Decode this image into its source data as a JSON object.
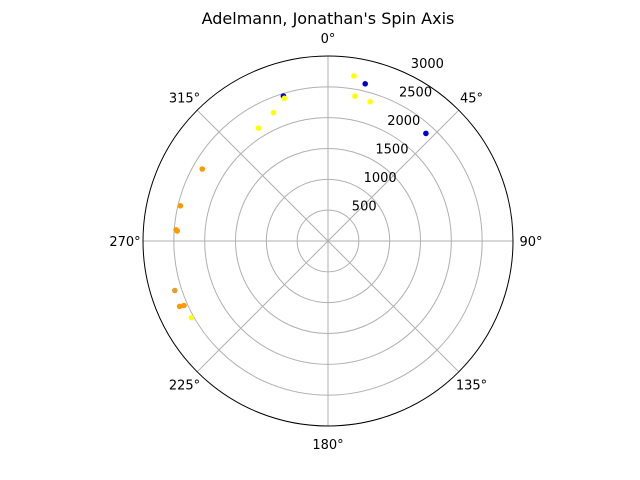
{
  "chart_data": {
    "type": "scatter",
    "projection": "polar",
    "title": "Adelmann, Jonathan's Spin Axis",
    "theta_zero": "top",
    "theta_direction": "clockwise",
    "rlim": [
      0,
      3000
    ],
    "r_ticks": [
      500,
      1000,
      1500,
      2000,
      2500,
      3000
    ],
    "theta_ticks": [
      "0°",
      "45°",
      "90°",
      "135°",
      "180°",
      "225°",
      "270°",
      "315°"
    ],
    "grid": true,
    "legend": "none",
    "colors": {
      "blue": "#0000cc",
      "yellow": "#ffff00",
      "orange": "#ff9900",
      "goldenrod": "#e0a030"
    },
    "points": [
      {
        "theta_deg": 13.3,
        "r": 2620,
        "color": "blue"
      },
      {
        "theta_deg": 42.3,
        "r": 2360,
        "color": "blue"
      },
      {
        "theta_deg": 342.9,
        "r": 2460,
        "color": "blue"
      },
      {
        "theta_deg": 8.9,
        "r": 2710,
        "color": "yellow"
      },
      {
        "theta_deg": 10.5,
        "r": 2390,
        "color": "yellow"
      },
      {
        "theta_deg": 16.8,
        "r": 2360,
        "color": "yellow"
      },
      {
        "theta_deg": 343.0,
        "r": 2420,
        "color": "yellow"
      },
      {
        "theta_deg": 337.0,
        "r": 2260,
        "color": "yellow"
      },
      {
        "theta_deg": 328.4,
        "r": 2150,
        "color": "yellow"
      },
      {
        "theta_deg": 240.7,
        "r": 2540,
        "color": "yellow"
      },
      {
        "theta_deg": 299.8,
        "r": 2350,
        "color": "orange"
      },
      {
        "theta_deg": 283.4,
        "r": 2460,
        "color": "orange"
      },
      {
        "theta_deg": 274.2,
        "r": 2470,
        "color": "orange"
      },
      {
        "theta_deg": 273.8,
        "r": 2450,
        "color": "orange"
      },
      {
        "theta_deg": 246.2,
        "r": 2630,
        "color": "orange"
      },
      {
        "theta_deg": 245.9,
        "r": 2560,
        "color": "orange"
      },
      {
        "theta_deg": 252.1,
        "r": 2610,
        "color": "goldenrod"
      }
    ]
  }
}
